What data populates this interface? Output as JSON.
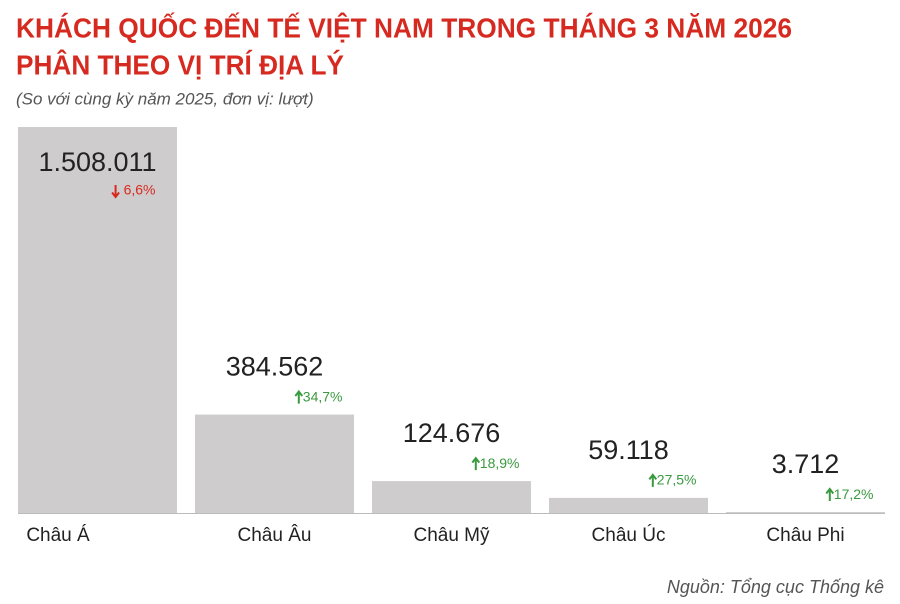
{
  "chart_data": {
    "type": "bar",
    "title": [
      "KHÁCH QUỐC ĐẾN TẾ VIỆT NAM TRONG THÁNG 3 NĂM 2026",
      "PHÂN THEO VỊ TRÍ ĐỊA LÝ"
    ],
    "subtitle": "(So với cùng kỳ năm 2025, đơn vị: lượt)",
    "categories": [
      "Châu Á",
      "Châu Âu",
      "Châu Mỹ",
      "Châu Úc",
      "Châu Phi"
    ],
    "values": [
      1508011,
      384562,
      124676,
      59118,
      3712
    ],
    "value_labels": [
      "1.508.011",
      "384.562",
      "124.676",
      "59.118",
      "3.712"
    ],
    "changes": [
      -6.6,
      34.7,
      18.9,
      27.5,
      17.2
    ],
    "change_labels": [
      "6,6%",
      "34,7%",
      "18,9%",
      "27,5%",
      "17,2%"
    ],
    "color": "#cfcccd",
    "up_color": "#3a9a3f",
    "down_color": "#d62a20",
    "source": "Nguồn: Tổng cục Thống kê"
  }
}
